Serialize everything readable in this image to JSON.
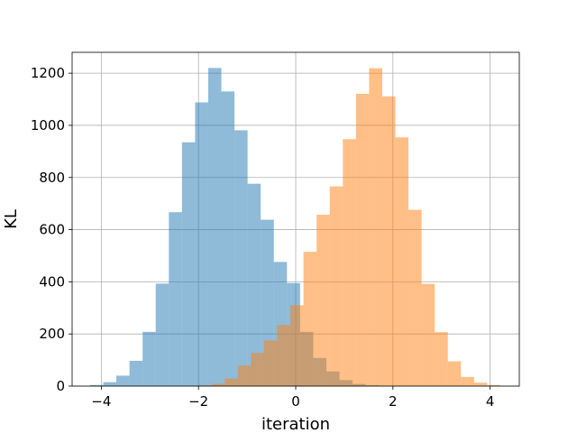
{
  "chart_data": {
    "type": "bar",
    "subtype": "histogram",
    "xlabel": "iteration",
    "ylabel": "KL",
    "xlim": [
      -4.6,
      4.6
    ],
    "ylim": [
      0,
      1280
    ],
    "grid": true,
    "x_ticks": [
      -4,
      -2,
      0,
      2,
      4
    ],
    "y_ticks": [
      0,
      200,
      400,
      600,
      800,
      1000,
      1200
    ],
    "bin_width": 0.27,
    "series": [
      {
        "color": "#1f77b4",
        "opacity": 0.5,
        "bins": [
          [
            -4.23,
            4
          ],
          [
            -3.96,
            15
          ],
          [
            -3.69,
            40
          ],
          [
            -3.42,
            97
          ],
          [
            -3.15,
            208
          ],
          [
            -2.88,
            393
          ],
          [
            -2.61,
            667
          ],
          [
            -2.34,
            935
          ],
          [
            -2.07,
            1088
          ],
          [
            -1.8,
            1220
          ],
          [
            -1.53,
            1130
          ],
          [
            -1.26,
            981
          ],
          [
            -0.99,
            776
          ],
          [
            -0.72,
            638
          ],
          [
            -0.45,
            476
          ],
          [
            -0.18,
            395
          ],
          [
            0.09,
            208
          ],
          [
            0.36,
            108
          ],
          [
            0.63,
            56
          ],
          [
            0.9,
            23
          ],
          [
            1.17,
            8
          ],
          [
            1.44,
            3
          ]
        ]
      },
      {
        "color": "#ff7f0e",
        "opacity": 0.5,
        "bins": [
          [
            -2.0,
            3
          ],
          [
            -1.73,
            9
          ],
          [
            -1.46,
            29
          ],
          [
            -1.19,
            79
          ],
          [
            -0.92,
            127
          ],
          [
            -0.65,
            175
          ],
          [
            -0.38,
            235
          ],
          [
            -0.11,
            310
          ],
          [
            0.16,
            515
          ],
          [
            0.43,
            657
          ],
          [
            0.7,
            766
          ],
          [
            0.97,
            947
          ],
          [
            1.24,
            1121
          ],
          [
            1.51,
            1219
          ],
          [
            1.78,
            1111
          ],
          [
            2.05,
            954
          ],
          [
            2.32,
            676
          ],
          [
            2.59,
            392
          ],
          [
            2.86,
            207
          ],
          [
            3.13,
            95
          ],
          [
            3.4,
            35
          ],
          [
            3.67,
            13
          ],
          [
            3.94,
            4
          ]
        ]
      }
    ]
  }
}
